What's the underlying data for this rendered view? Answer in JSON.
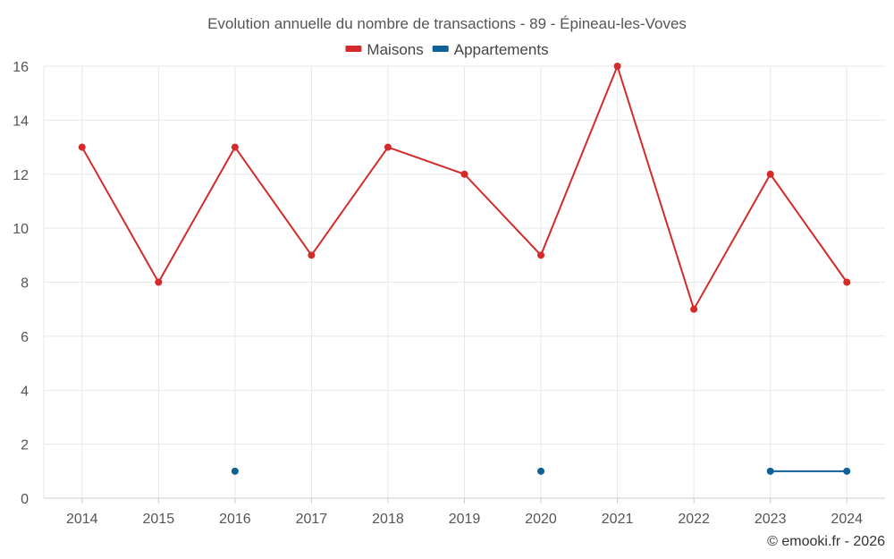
{
  "chart_data": {
    "type": "line",
    "title": "Evolution annuelle du nombre de transactions - 89 - Épineau-les-Voves",
    "xlabel": "",
    "ylabel": "",
    "categories": [
      "2014",
      "2015",
      "2016",
      "2017",
      "2018",
      "2019",
      "2020",
      "2021",
      "2022",
      "2023",
      "2024"
    ],
    "ylim": [
      0,
      16
    ],
    "yticks": [
      0,
      2,
      4,
      6,
      8,
      10,
      12,
      14,
      16
    ],
    "grid": true,
    "legend_position": "top-center",
    "series": [
      {
        "name": "Maisons",
        "color": "#d42a2a",
        "values": [
          13,
          8,
          13,
          9,
          13,
          12,
          9,
          16,
          7,
          12,
          8
        ]
      },
      {
        "name": "Appartements",
        "color": "#0f6197",
        "values": [
          null,
          null,
          1,
          null,
          null,
          null,
          1,
          null,
          null,
          1,
          1
        ]
      }
    ]
  },
  "footer": {
    "credit": "© emooki.fr - 2026"
  }
}
